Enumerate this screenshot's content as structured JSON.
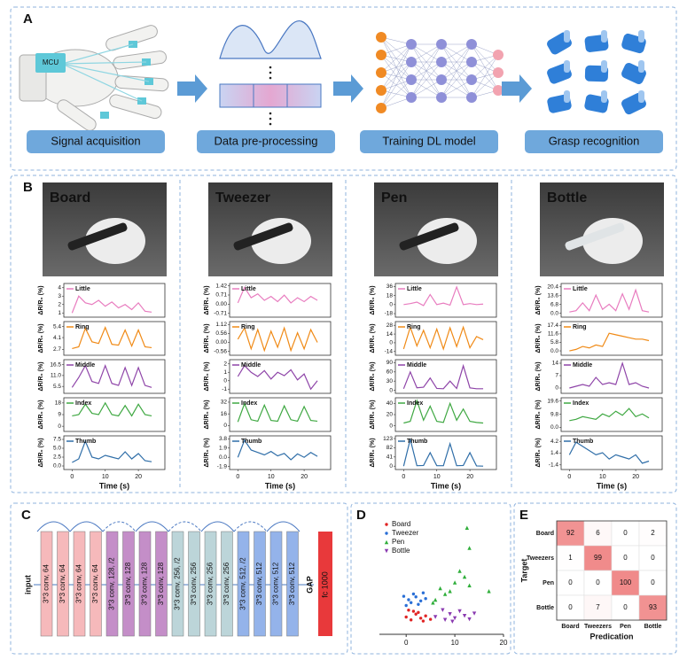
{
  "panel_a": {
    "letter": "A",
    "mcu": "MCU",
    "steps": [
      "Signal acquisition",
      "Data pre-processing",
      "Training DL model",
      "Grasp recognition"
    ]
  },
  "panel_b": {
    "letter": "B",
    "type": "line",
    "xlabel": "Time (s)",
    "ylabel": "ΔR/R₀ (%)",
    "x": [
      0,
      2,
      4,
      6,
      8,
      10,
      12,
      14,
      16,
      18,
      20,
      22,
      24
    ],
    "xlim": [
      -2.5,
      28
    ],
    "xticks": [
      0,
      10,
      20
    ],
    "objects": [
      {
        "name": "Board",
        "plots": [
          {
            "finger": "Little",
            "color": "#e87cbf",
            "ylim": [
              0.5,
              4.5
            ],
            "yticks": [
              1,
              2,
              3,
              4
            ],
            "values": [
              1,
              3,
              2.2,
              2,
              2.5,
              1.8,
              2.3,
              1.6,
              2,
              1.4,
              2.2,
              1.2,
              1.1
            ]
          },
          {
            "finger": "Ring",
            "color": "#f08a16",
            "ylim": [
              2,
              6
            ],
            "yticks": [
              2.7,
              4.1,
              5.4
            ],
            "values": [
              2.8,
              3.0,
              5.2,
              3.6,
              3.4,
              5.3,
              3.3,
              3.2,
              5.0,
              3.1,
              5.0,
              3.0,
              2.9
            ]
          },
          {
            "finger": "Middle",
            "color": "#8e44a8",
            "ylim": [
              2,
              19
            ],
            "yticks": [
              5.5,
              {
                "value": 11,
                "label": "11.0"
              },
              16.5
            ],
            "values": [
              5,
              10,
              16,
              8,
              7,
              16,
              7,
              6,
              15,
              6,
              15,
              6,
              5
            ]
          },
          {
            "finger": "Index",
            "color": "#3fa842",
            "ylim": [
              -4,
              22
            ],
            "yticks": [
              0,
              9,
              18
            ],
            "values": [
              8,
              9,
              17,
              10,
              9,
              18,
              9,
              8,
              16,
              8,
              17,
              9,
              8
            ]
          },
          {
            "finger": "Thumb",
            "color": "#2f6ea8",
            "ylim": [
              -1,
              8.5
            ],
            "yticks": [
              {
                "value": 0,
                "label": "0.0"
              },
              2.5,
              {
                "value": 5,
                "label": "5.0"
              },
              7.5
            ],
            "values": [
              1,
              2,
              7,
              2.5,
              2,
              3,
              2.5,
              2,
              4,
              2,
              3.5,
              1.5,
              1.2
            ]
          }
        ]
      },
      {
        "name": "Tweezer",
        "plots": [
          {
            "finger": "Little",
            "color": "#e87cbf",
            "ylim": [
              -1,
              1.6
            ],
            "yticks": [
              -0.71,
              {
                "value": 0,
                "label": "0.00"
              },
              0.71,
              1.42
            ],
            "values": [
              0.1,
              1.3,
              0.5,
              0.8,
              0.3,
              0.6,
              0.2,
              0.7,
              0.1,
              0.5,
              0.2,
              0.6,
              0.3
            ]
          },
          {
            "finger": "Ring",
            "color": "#f08a16",
            "ylim": [
              -0.8,
              1.3
            ],
            "yticks": [
              -0.56,
              {
                "value": 0,
                "label": "0.00"
              },
              0.56,
              1.12
            ],
            "values": [
              0.2,
              0.9,
              -0.4,
              0.8,
              -0.5,
              0.7,
              -0.3,
              0.9,
              -0.5,
              0.6,
              -0.4,
              0.8,
              0
            ]
          },
          {
            "finger": "Middle",
            "color": "#8e44a8",
            "ylim": [
              -1.5,
              2.5
            ],
            "yticks": [
              -1,
              0,
              1,
              2
            ],
            "values": [
              0.5,
              1.8,
              1,
              0.5,
              1.2,
              0.2,
              1,
              0.6,
              1.3,
              0.1,
              0.8,
              -1,
              0
            ]
          },
          {
            "finger": "Index",
            "color": "#3fa842",
            "ylim": [
              -8,
              38
            ],
            "yticks": [
              0,
              16,
              32
            ],
            "values": [
              5,
              30,
              8,
              6,
              28,
              7,
              6,
              27,
              8,
              6,
              26,
              7,
              6
            ]
          },
          {
            "finger": "Thumb",
            "color": "#2f6ea8",
            "ylim": [
              -2.5,
              4.4
            ],
            "yticks": [
              -1.9,
              {
                "value": 0,
                "label": "0.0"
              },
              1.9,
              3.8
            ],
            "values": [
              0,
              3.5,
              1.5,
              1,
              0.5,
              1.2,
              0.3,
              0.8,
              -0.5,
              0.7,
              0,
              1,
              0.2
            ]
          }
        ]
      },
      {
        "name": "Pen",
        "plots": [
          {
            "finger": "Little",
            "color": "#e87cbf",
            "ylim": [
              -25,
              42
            ],
            "yticks": [
              -18,
              0,
              18,
              36
            ],
            "values": [
              0,
              2,
              5,
              -2,
              20,
              0,
              3,
              -1,
              35,
              0,
              2,
              0,
              1
            ]
          },
          {
            "finger": "Ring",
            "color": "#f08a16",
            "ylim": [
              -20,
              34
            ],
            "yticks": [
              -14,
              0,
              14,
              28
            ],
            "values": [
              -10,
              25,
              -5,
              20,
              -8,
              22,
              -10,
              24,
              -6,
              25,
              -8,
              10,
              5
            ]
          },
          {
            "finger": "Middle",
            "color": "#8e44a8",
            "ylim": [
              -10,
              100
            ],
            "yticks": [
              0,
              30,
              60,
              90
            ],
            "values": [
              5,
              60,
              8,
              10,
              40,
              6,
              5,
              30,
              6,
              80,
              8,
              5,
              5
            ]
          },
          {
            "finger": "Index",
            "color": "#3fa842",
            "ylim": [
              -10,
              50
            ],
            "yticks": [
              0,
              20,
              40
            ],
            "values": [
              5,
              8,
              45,
              10,
              35,
              8,
              6,
              40,
              10,
              30,
              8,
              6,
              5
            ]
          },
          {
            "finger": "Thumb",
            "color": "#2f6ea8",
            "ylim": [
              -15,
              135
            ],
            "yticks": [
              0,
              41,
              82,
              123
            ],
            "values": [
              0,
              120,
              2,
              3,
              60,
              2,
              2,
              100,
              2,
              3,
              60,
              1,
              0
            ]
          }
        ]
      },
      {
        "name": "Bottle",
        "plots": [
          {
            "finger": "Little",
            "color": "#e87cbf",
            "ylim": [
              -3,
              23
            ],
            "yticks": [
              {
                "value": 0,
                "label": "0.0"
              },
              6.8,
              13.6,
              20.4
            ],
            "values": [
              1,
              2,
              8,
              2,
              14,
              3,
              7,
              2,
              15,
              3,
              18,
              2,
              1
            ]
          },
          {
            "finger": "Ring",
            "color": "#f08a16",
            "ylim": [
              -3,
              20
            ],
            "yticks": [
              {
                "value": 0,
                "label": "0.0"
              },
              5.8,
              11.6,
              17.4
            ],
            "values": [
              0,
              1,
              3,
              2,
              4,
              3,
              12,
              11,
              10,
              9,
              8,
              8,
              7
            ]
          },
          {
            "finger": "Middle",
            "color": "#8e44a8",
            "ylim": [
              -3,
              16
            ],
            "yticks": [
              0,
              7,
              14
            ],
            "values": [
              0,
              1,
              2,
              1,
              6,
              2,
              3,
              2,
              14,
              2,
              3,
              1,
              0
            ]
          },
          {
            "finger": "Index",
            "color": "#3fa842",
            "ylim": [
              -3,
              22
            ],
            "yticks": [
              {
                "value": 0,
                "label": "0.0"
              },
              9.8,
              19.6
            ],
            "values": [
              5,
              6,
              8,
              7,
              6,
              10,
              8,
              12,
              9,
              14,
              8,
              10,
              7
            ]
          },
          {
            "finger": "Thumb",
            "color": "#2f6ea8",
            "ylim": [
              -2.5,
              5.5
            ],
            "yticks": [
              -1.4,
              1.4,
              4.2
            ],
            "values": [
              1,
              4,
              3,
              2,
              1,
              1.5,
              0,
              1,
              0.5,
              0,
              1,
              -1,
              -0.5
            ]
          }
        ]
      }
    ]
  },
  "panel_c": {
    "letter": "C",
    "input": "input",
    "gap": "GAP",
    "fc": "fc 1000",
    "fc_color": "#e8393b",
    "layers": [
      {
        "label": "3*3 conv, 64",
        "color": "#f6b9bb"
      },
      {
        "label": "3*3 conv, 64",
        "color": "#f6b9bb"
      },
      {
        "label": "3*3 conv, 64",
        "color": "#f6b9bb"
      },
      {
        "label": "3*3 conv, 64",
        "color": "#f6b9bb"
      },
      {
        "label": "3*3 conv, 128, /2",
        "color": "#c48ec8"
      },
      {
        "label": "3*3 conv, 128",
        "color": "#c48ec8"
      },
      {
        "label": "3*3 conv, 128",
        "color": "#c48ec8"
      },
      {
        "label": "3*3 conv, 128",
        "color": "#c48ec8"
      },
      {
        "label": "3*3 conv, 256, /2",
        "color": "#bcd5d9"
      },
      {
        "label": "3*3 conv, 256",
        "color": "#bcd5d9"
      },
      {
        "label": "3*3 conv, 256",
        "color": "#bcd5d9"
      },
      {
        "label": "3*3 conv, 256",
        "color": "#bcd5d9"
      },
      {
        "label": "3*3 conv, 512, /2",
        "color": "#94b3ea"
      },
      {
        "label": "3*3 conv, 512",
        "color": "#94b3ea"
      },
      {
        "label": "3*3 conv, 512",
        "color": "#94b3ea"
      },
      {
        "label": "3*3 conv, 512",
        "color": "#94b3ea"
      }
    ]
  },
  "panel_d": {
    "letter": "D",
    "type": "scatter",
    "xlim": [
      -5.5,
      20
    ],
    "xticks": [
      0,
      10,
      20
    ],
    "ylim": [
      -2,
      18
    ],
    "series": [
      {
        "name": "Board",
        "color": "#e02424",
        "marker": "circle",
        "x": [
          0,
          1,
          2,
          3,
          4,
          5,
          1.5,
          3.5,
          0.5,
          2.5
        ],
        "y": [
          1,
          0.5,
          1.5,
          0.8,
          1.2,
          0.6,
          2,
          0.3,
          2.2,
          1.8
        ]
      },
      {
        "name": "Tweezer",
        "color": "#2a6fd6",
        "marker": "circle",
        "x": [
          0,
          0.5,
          1,
          2,
          3,
          1.5,
          2.5,
          4,
          -0.5,
          3.5
        ],
        "y": [
          3,
          4,
          3.5,
          4.5,
          3.8,
          5,
          3.2,
          4.2,
          4.6,
          5.2
        ]
      },
      {
        "name": "Pen",
        "color": "#2fae3a",
        "marker": "triangle",
        "x": [
          6,
          7,
          8,
          10,
          12,
          13,
          9,
          11,
          17,
          12.5,
          13,
          5.5
        ],
        "y": [
          4,
          6,
          5,
          7,
          8,
          6.5,
          5.5,
          9,
          5.5,
          16.5,
          13,
          3.5
        ]
      },
      {
        "name": "Bottle",
        "color": "#8a3ab0",
        "marker": "triangle-down",
        "x": [
          6,
          8,
          9,
          10,
          11,
          12,
          7.5,
          13,
          9.5,
          14
        ],
        "y": [
          1,
          0.5,
          1.5,
          0.8,
          2,
          1.2,
          2.2,
          0.6,
          0.2,
          1.6
        ]
      }
    ]
  },
  "panel_e": {
    "letter": "E",
    "type": "heatmap",
    "ylabel": "Target",
    "xlabel": "Predication",
    "color": "#f08a8a",
    "vmax": 100,
    "labels": [
      "Board",
      "Tweezers",
      "Pen",
      "Bottle"
    ],
    "values": [
      [
        92,
        6,
        0,
        2
      ],
      [
        1,
        99,
        0,
        0
      ],
      [
        0,
        0,
        100,
        0
      ],
      [
        0,
        7,
        0,
        93
      ]
    ]
  }
}
